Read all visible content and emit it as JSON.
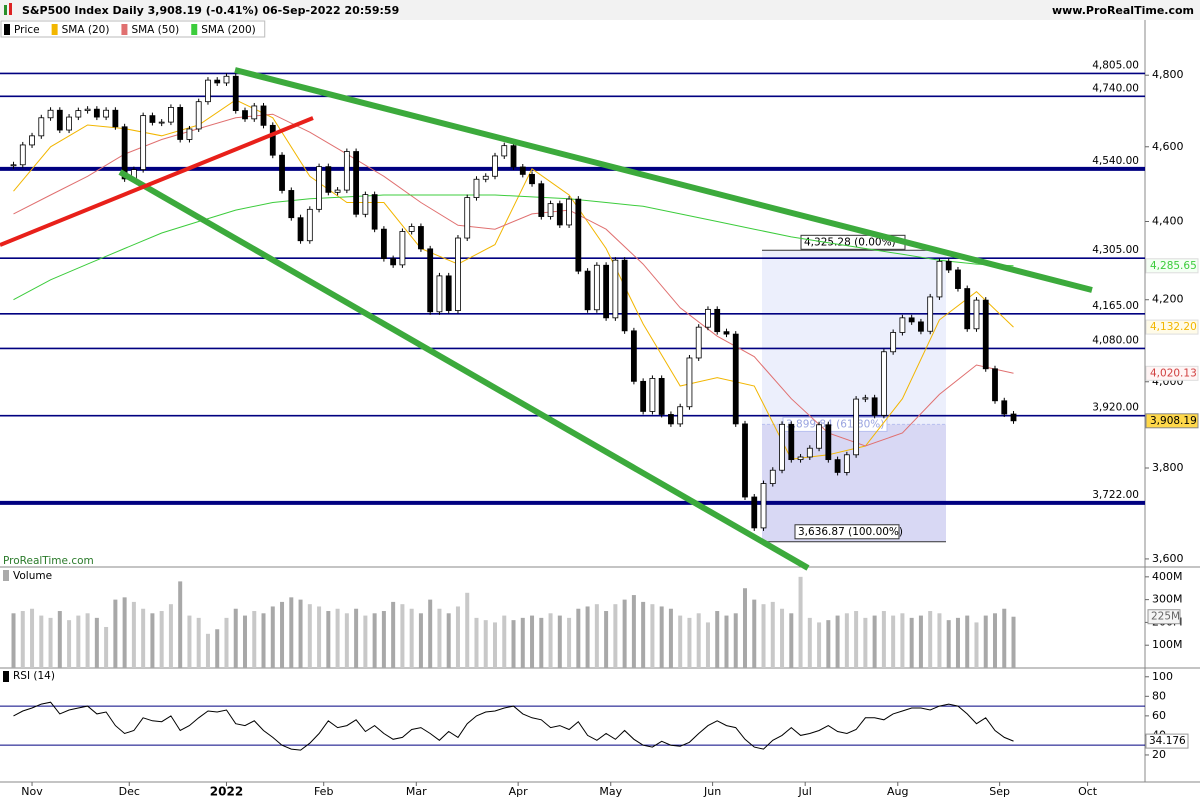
{
  "header": {
    "site": "www.ProRealTime.com",
    "watermark": "ProRealTime.com"
  },
  "chart_data": [
    {
      "type": "candlestick",
      "title": "S&P500 Index Daily 3,908.19 (-0.41%) 06-Sep-2022 20:59:59",
      "log_scale": true,
      "xlim": [
        -1.46,
        122.2
      ],
      "xticks": [
        {
          "value": 2,
          "label": "Nov"
        },
        {
          "value": 12.5,
          "label": "Dec"
        },
        {
          "value": 23,
          "label": "2022"
        },
        {
          "value": 33.5,
          "label": "Feb"
        },
        {
          "value": 43.5,
          "label": "Mar"
        },
        {
          "value": 54.5,
          "label": "Apr"
        },
        {
          "value": 64.5,
          "label": "May"
        },
        {
          "value": 75.5,
          "label": "Jun"
        },
        {
          "value": 85.5,
          "label": "Jul"
        },
        {
          "value": 95.5,
          "label": "Aug"
        },
        {
          "value": 106.5,
          "label": "Sep"
        },
        {
          "value": 116,
          "label": "Oct"
        }
      ],
      "ylim": [
        3587,
        4975
      ],
      "yticks": [
        {
          "value": 4800,
          "label": "4,800"
        },
        {
          "value": 4600,
          "label": "4,600"
        },
        {
          "value": 4400,
          "label": "4,400"
        },
        {
          "value": 4200,
          "label": "4,200"
        },
        {
          "value": 4000,
          "label": "4,000"
        },
        {
          "value": 3800,
          "label": "3,800"
        },
        {
          "value": 3600,
          "label": "3,600"
        }
      ],
      "series": [
        {
          "name": "Price",
          "color": "#000000",
          "last_label": "3,908.19",
          "values": [
            4551,
            4605,
            4630,
            4680,
            4701,
            4646,
            4682,
            4700,
            4704,
            4682,
            4701,
            4655,
            4513,
            4538,
            4686,
            4667,
            4668,
            4709,
            4620,
            4649,
            4725,
            4786,
            4778,
            4797,
            4700,
            4677,
            4713,
            4659,
            4577,
            4482,
            4410,
            4350,
            4432,
            4546,
            4477,
            4483,
            4587,
            4419,
            4471,
            4380,
            4304,
            4288,
            4374,
            4387,
            4329,
            4170,
            4260,
            4173,
            4357,
            4463,
            4512,
            4520,
            4575,
            4603,
            4545,
            4525,
            4500,
            4413,
            4447,
            4391,
            4459,
            4272,
            4175,
            4287,
            4155,
            4300,
            4123,
            4001,
            3930,
            4008,
            3923,
            3901,
            3941,
            4057,
            4132,
            4176,
            4121,
            4115,
            3901,
            3735,
            3667,
            3765,
            3795,
            3900,
            3819,
            3825,
            3845,
            3899,
            3819,
            3790,
            3830,
            3959,
            3962,
            3921,
            4072,
            4119,
            4155,
            4145,
            4122,
            4207,
            4297,
            4275,
            4228,
            4128,
            4199,
            4031,
            3955,
            3924,
            3908.19
          ]
        },
        {
          "name": "SMA (20)",
          "color": "#f2b600",
          "last_label": "4,132.20",
          "x": [
            0,
            4,
            8,
            12,
            16,
            20,
            24,
            28,
            32,
            36,
            40,
            44,
            48,
            52,
            56,
            60,
            64,
            68,
            72,
            76,
            80,
            84,
            88,
            92,
            96,
            100,
            104,
            108
          ],
          "values": [
            4480,
            4600,
            4660,
            4650,
            4630,
            4660,
            4730,
            4680,
            4520,
            4450,
            4450,
            4330,
            4290,
            4340,
            4540,
            4470,
            4330,
            4140,
            3990,
            4010,
            3990,
            3820,
            3830,
            3850,
            3960,
            4150,
            4220,
            4132.2
          ]
        },
        {
          "name": "SMA (50)",
          "color": "#e07070",
          "last_label": "4,020.13",
          "x": [
            0,
            4,
            8,
            12,
            16,
            20,
            24,
            28,
            32,
            36,
            40,
            44,
            48,
            52,
            56,
            60,
            64,
            68,
            72,
            76,
            80,
            84,
            88,
            92,
            96,
            100,
            104,
            108
          ],
          "values": [
            4420,
            4470,
            4520,
            4580,
            4620,
            4650,
            4680,
            4690,
            4640,
            4580,
            4520,
            4450,
            4390,
            4380,
            4420,
            4430,
            4380,
            4290,
            4180,
            4110,
            4060,
            3960,
            3880,
            3850,
            3880,
            3970,
            4040,
            4020.13
          ]
        },
        {
          "name": "SMA (200)",
          "color": "#3ccc3c",
          "last_label": "4,285.65",
          "x": [
            0,
            4,
            8,
            12,
            16,
            20,
            24,
            28,
            32,
            36,
            40,
            44,
            48,
            52,
            56,
            60,
            64,
            68,
            72,
            76,
            80,
            84,
            88,
            92,
            96,
            100,
            104,
            108
          ],
          "values": [
            4200,
            4250,
            4290,
            4330,
            4370,
            4400,
            4430,
            4450,
            4460,
            4465,
            4470,
            4470,
            4470,
            4470,
            4465,
            4460,
            4450,
            4440,
            4420,
            4400,
            4380,
            4360,
            4345,
            4330,
            4315,
            4300,
            4290,
            4285.65
          ]
        }
      ],
      "levels": [
        {
          "value": 4805,
          "label": "4,805.00",
          "thick": false
        },
        {
          "value": 4740,
          "label": "4,740.00",
          "thick": false
        },
        {
          "value": 4540,
          "label": "4,540.00",
          "thick": true
        },
        {
          "value": 4305,
          "label": "4,305.00",
          "thick": false
        },
        {
          "value": 4165,
          "label": "4,165.00",
          "thick": false
        },
        {
          "value": 4080,
          "label": "4,080.00",
          "thick": false
        },
        {
          "value": 3920,
          "label": "3,920.00",
          "thick": false
        },
        {
          "value": 3722,
          "label": "3,722.00",
          "thick": true
        }
      ],
      "level_color": "#000080",
      "fib": {
        "values": [
          4325.28,
          3899.84,
          3636.87
        ],
        "labels": [
          "4,325.28 (0.00%)",
          "3,899.84 (61.80%)",
          "3,636.87 (100.00%)"
        ]
      }
    },
    {
      "type": "bar",
      "title": "Volume",
      "color": "#a8a8a8",
      "ylim": [
        0,
        430
      ],
      "yticks": [
        {
          "value": 400,
          "label": "400M"
        },
        {
          "value": 300,
          "label": "300M"
        },
        {
          "value": 200,
          "label": "200M"
        },
        {
          "value": 100,
          "label": "100M"
        }
      ],
      "last_label": "225M",
      "values": [
        240,
        250,
        260,
        230,
        220,
        250,
        210,
        230,
        240,
        220,
        180,
        300,
        310,
        290,
        260,
        240,
        250,
        280,
        380,
        230,
        220,
        150,
        170,
        220,
        260,
        230,
        250,
        240,
        270,
        290,
        310,
        300,
        280,
        270,
        250,
        260,
        240,
        260,
        230,
        240,
        250,
        290,
        280,
        260,
        240,
        300,
        260,
        240,
        270,
        330,
        220,
        210,
        200,
        230,
        210,
        220,
        230,
        220,
        240,
        230,
        220,
        260,
        270,
        280,
        250,
        280,
        300,
        320,
        290,
        280,
        270,
        260,
        230,
        220,
        240,
        200,
        250,
        230,
        240,
        350,
        300,
        280,
        290,
        260,
        240,
        400,
        220,
        200,
        210,
        230,
        240,
        250,
        220,
        230,
        250,
        230,
        240,
        220,
        230,
        250,
        240,
        210,
        220,
        230,
        200,
        230,
        240,
        260,
        225
      ]
    },
    {
      "type": "line",
      "title": "RSI (14)",
      "color": "#000000",
      "ylim": [
        0,
        110
      ],
      "yticks": [
        100,
        80,
        60,
        40,
        20
      ],
      "levels": [
        70,
        30
      ],
      "level_color": "#000080",
      "last_label": "34.176",
      "values": [
        60,
        65,
        68,
        72,
        74,
        62,
        66,
        68,
        70,
        62,
        64,
        50,
        42,
        45,
        58,
        55,
        54,
        60,
        45,
        50,
        58,
        65,
        64,
        66,
        52,
        50,
        55,
        45,
        38,
        30,
        26,
        25,
        32,
        42,
        55,
        48,
        50,
        56,
        44,
        50,
        42,
        36,
        38,
        46,
        48,
        42,
        35,
        44,
        38,
        52,
        60,
        64,
        65,
        68,
        70,
        62,
        58,
        56,
        48,
        50,
        46,
        54,
        40,
        35,
        42,
        36,
        45,
        36,
        30,
        28,
        34,
        30,
        29,
        33,
        42,
        50,
        55,
        50,
        48,
        36,
        28,
        26,
        35,
        40,
        48,
        40,
        42,
        45,
        50,
        44,
        42,
        46,
        58,
        58,
        56,
        62,
        65,
        68,
        68,
        66,
        70,
        72,
        70,
        62,
        52,
        58,
        45,
        38,
        34.176
      ]
    }
  ]
}
